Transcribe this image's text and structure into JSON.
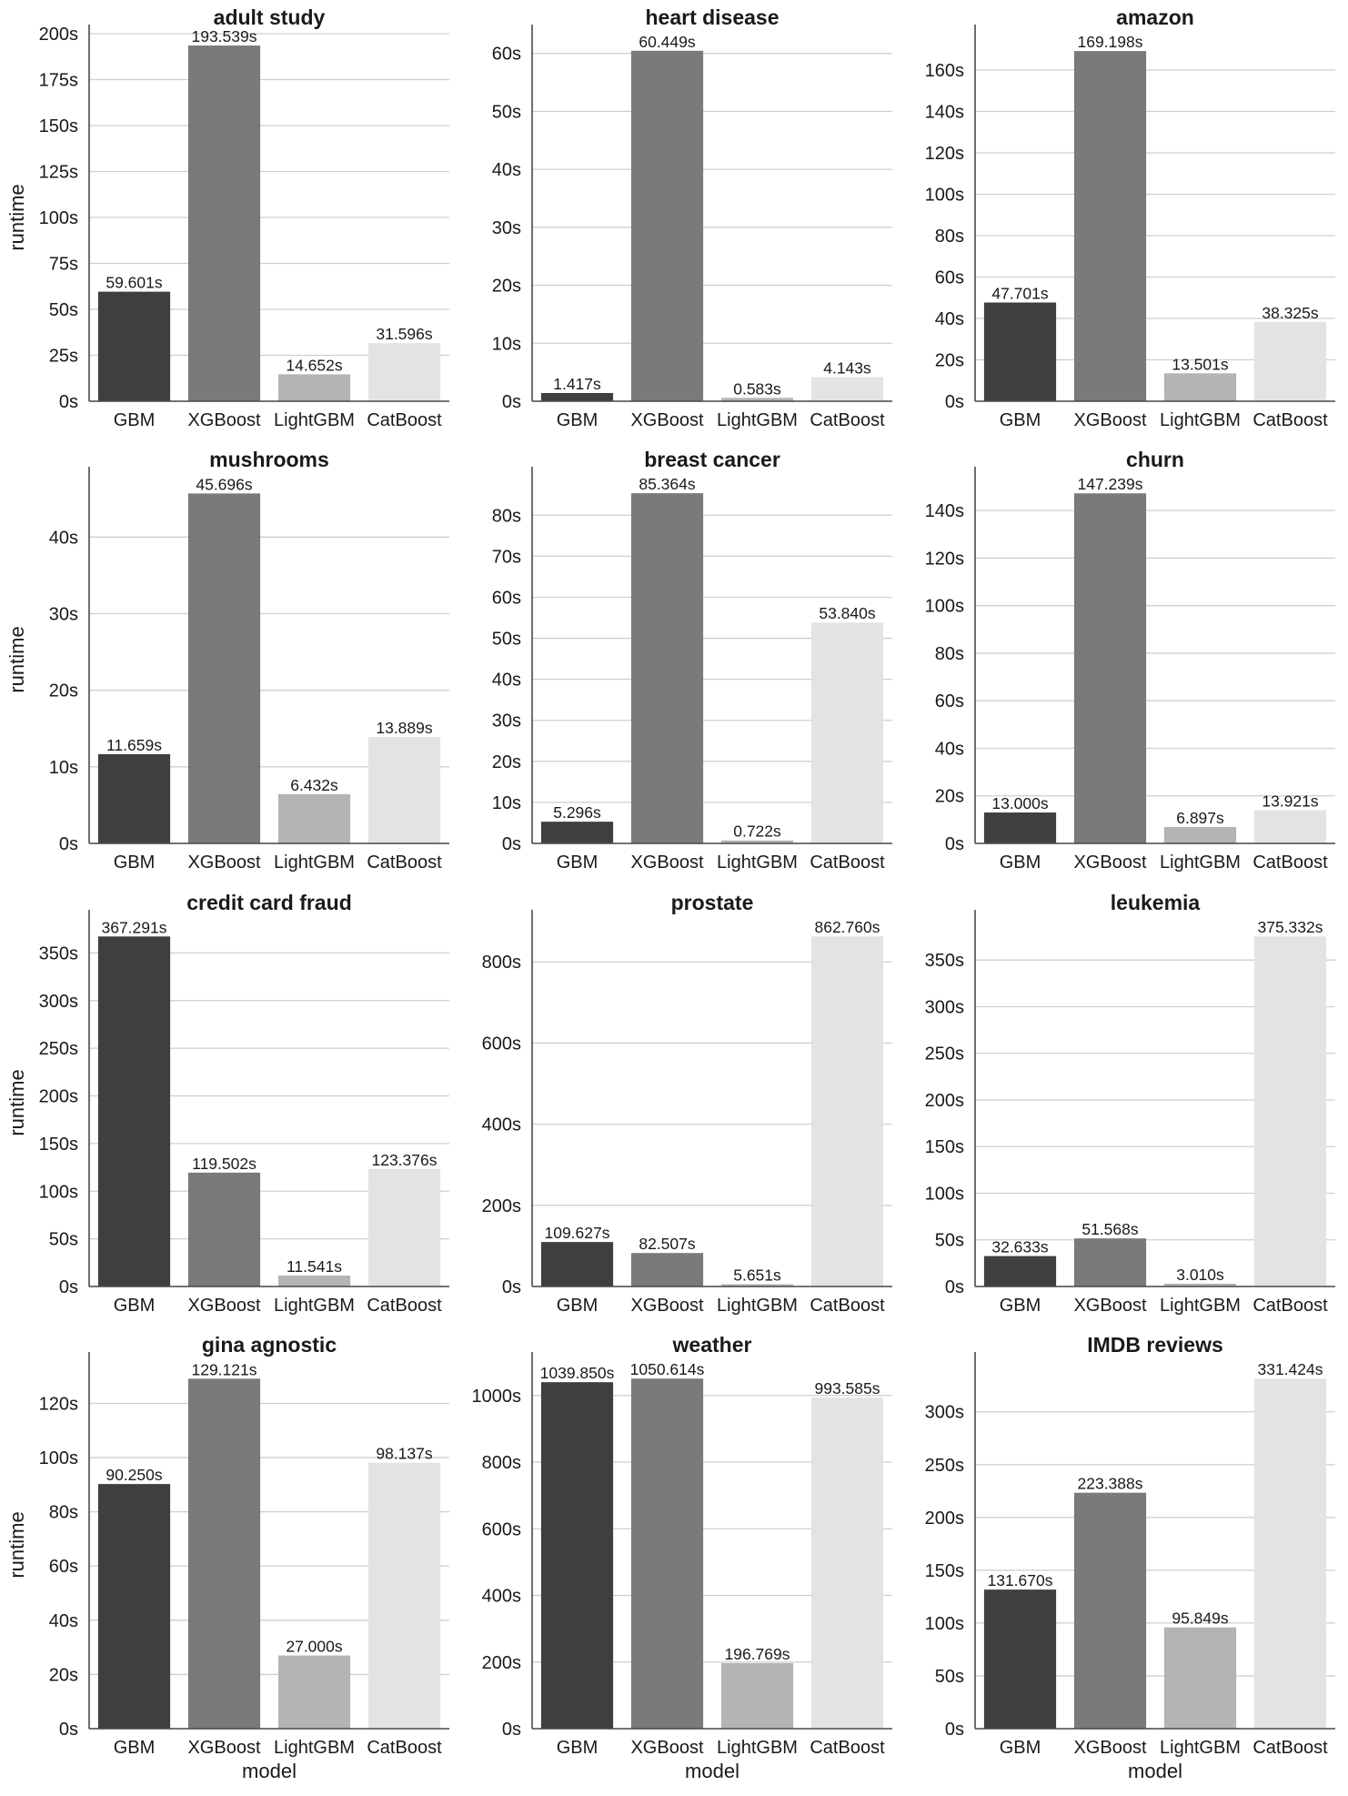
{
  "chart_data": [
    {
      "type": "bar",
      "title": "adult study",
      "categories": [
        "GBM",
        "XGBoost",
        "LightGBM",
        "CatBoost"
      ],
      "values": [
        59.601,
        193.539,
        14.652,
        31.596
      ],
      "labels": [
        "59.601s",
        "193.539s",
        "14.652s",
        "31.596s"
      ],
      "ylim": [
        0,
        200
      ],
      "yticks": [
        0,
        25,
        50,
        75,
        100,
        125,
        150,
        175,
        200
      ],
      "ytick_labels": [
        "0s",
        "25s",
        "50s",
        "75s",
        "100s",
        "125s",
        "150s",
        "175s",
        "200s"
      ],
      "ylabel": "runtime",
      "xlabel": ""
    },
    {
      "type": "bar",
      "title": "heart disease",
      "categories": [
        "GBM",
        "XGBoost",
        "LightGBM",
        "CatBoost"
      ],
      "values": [
        1.417,
        60.449,
        0.583,
        4.143
      ],
      "labels": [
        "1.417s",
        "60.449s",
        "0.583s",
        "4.143s"
      ],
      "ylim": [
        0,
        63.4
      ],
      "yticks": [
        0,
        10,
        20,
        30,
        40,
        50,
        60
      ],
      "ytick_labels": [
        "0s",
        "10s",
        "20s",
        "30s",
        "40s",
        "50s",
        "60s"
      ],
      "ylabel": "",
      "xlabel": ""
    },
    {
      "type": "bar",
      "title": "amazon",
      "categories": [
        "GBM",
        "XGBoost",
        "LightGBM",
        "CatBoost"
      ],
      "values": [
        47.701,
        169.198,
        13.501,
        38.325
      ],
      "labels": [
        "47.701s",
        "169.198s",
        "13.501s",
        "38.325s"
      ],
      "ylim": [
        0,
        177.6
      ],
      "yticks": [
        0,
        20,
        40,
        60,
        80,
        100,
        120,
        140,
        160
      ],
      "ytick_labels": [
        "0s",
        "20s",
        "40s",
        "60s",
        "80s",
        "100s",
        "120s",
        "140s",
        "160s"
      ],
      "ylabel": "",
      "xlabel": ""
    },
    {
      "type": "bar",
      "title": "mushrooms",
      "categories": [
        "GBM",
        "XGBoost",
        "LightGBM",
        "CatBoost"
      ],
      "values": [
        11.659,
        45.696,
        6.432,
        13.889
      ],
      "labels": [
        "11.659s",
        "45.696s",
        "6.432s",
        "13.889s"
      ],
      "ylim": [
        0,
        48
      ],
      "yticks": [
        0,
        10,
        20,
        30,
        40
      ],
      "ytick_labels": [
        "0s",
        "10s",
        "20s",
        "30s",
        "40s"
      ],
      "ylabel": "runtime",
      "xlabel": ""
    },
    {
      "type": "bar",
      "title": "breast cancer",
      "categories": [
        "GBM",
        "XGBoost",
        "LightGBM",
        "CatBoost"
      ],
      "values": [
        5.296,
        85.364,
        0.722,
        53.84
      ],
      "labels": [
        "5.296s",
        "85.364s",
        "0.722s",
        "53.840s"
      ],
      "ylim": [
        0,
        89.6
      ],
      "yticks": [
        0,
        10,
        20,
        30,
        40,
        50,
        60,
        70,
        80
      ],
      "ytick_labels": [
        "0s",
        "10s",
        "20s",
        "30s",
        "40s",
        "50s",
        "60s",
        "70s",
        "80s"
      ],
      "ylabel": "",
      "xlabel": ""
    },
    {
      "type": "bar",
      "title": "churn",
      "categories": [
        "GBM",
        "XGBoost",
        "LightGBM",
        "CatBoost"
      ],
      "values": [
        13.0,
        147.239,
        6.897,
        13.921
      ],
      "labels": [
        "13.000s",
        "147.239s",
        "6.897s",
        "13.921s"
      ],
      "ylim": [
        0,
        154.6
      ],
      "yticks": [
        0,
        20,
        40,
        60,
        80,
        100,
        120,
        140
      ],
      "ytick_labels": [
        "0s",
        "20s",
        "40s",
        "60s",
        "80s",
        "100s",
        "120s",
        "140s"
      ],
      "ylabel": "",
      "xlabel": ""
    },
    {
      "type": "bar",
      "title": "credit card fraud",
      "categories": [
        "GBM",
        "XGBoost",
        "LightGBM",
        "CatBoost"
      ],
      "values": [
        367.291,
        119.502,
        11.541,
        123.376
      ],
      "labels": [
        "367.291s",
        "119.502s",
        "11.541s",
        "123.376s"
      ],
      "ylim": [
        0,
        385.7
      ],
      "yticks": [
        0,
        50,
        100,
        150,
        200,
        250,
        300,
        350
      ],
      "ytick_labels": [
        "0s",
        "50s",
        "100s",
        "150s",
        "200s",
        "250s",
        "300s",
        "350s"
      ],
      "ylabel": "runtime",
      "xlabel": ""
    },
    {
      "type": "bar",
      "title": "prostate",
      "categories": [
        "GBM",
        "XGBoost",
        "LightGBM",
        "CatBoost"
      ],
      "values": [
        109.627,
        82.507,
        5.651,
        862.76
      ],
      "labels": [
        "109.627s",
        "82.507s",
        "5.651s",
        "862.760s"
      ],
      "ylim": [
        0,
        905.9
      ],
      "yticks": [
        0,
        200,
        400,
        600,
        800
      ],
      "ytick_labels": [
        "0s",
        "200s",
        "400s",
        "600s",
        "800s"
      ],
      "ylabel": "",
      "xlabel": ""
    },
    {
      "type": "bar",
      "title": "leukemia",
      "categories": [
        "GBM",
        "XGBoost",
        "LightGBM",
        "CatBoost"
      ],
      "values": [
        32.633,
        51.568,
        3.01,
        375.332
      ],
      "labels": [
        "32.633s",
        "51.568s",
        "3.010s",
        "375.332s"
      ],
      "ylim": [
        0,
        394.1
      ],
      "yticks": [
        0,
        50,
        100,
        150,
        200,
        250,
        300,
        350
      ],
      "ytick_labels": [
        "0s",
        "50s",
        "100s",
        "150s",
        "200s",
        "250s",
        "300s",
        "350s"
      ],
      "ylabel": "",
      "xlabel": ""
    },
    {
      "type": "bar",
      "title": "gina agnostic",
      "categories": [
        "GBM",
        "XGBoost",
        "LightGBM",
        "CatBoost"
      ],
      "values": [
        90.25,
        129.121,
        27.0,
        98.137
      ],
      "labels": [
        "90.250s",
        "129.121s",
        "27.000s",
        "98.137s"
      ],
      "ylim": [
        0,
        135.6
      ],
      "yticks": [
        0,
        20,
        40,
        60,
        80,
        100,
        120
      ],
      "ytick_labels": [
        "0s",
        "20s",
        "40s",
        "60s",
        "80s",
        "100s",
        "120s"
      ],
      "ylabel": "runtime",
      "xlabel": "model"
    },
    {
      "type": "bar",
      "title": "weather",
      "categories": [
        "GBM",
        "XGBoost",
        "LightGBM",
        "CatBoost"
      ],
      "values": [
        1039.85,
        1050.614,
        196.769,
        993.585
      ],
      "labels": [
        "1039.850s",
        "1050.614s",
        "196.769s",
        "993.585s"
      ],
      "ylim": [
        0,
        1103.1
      ],
      "yticks": [
        0,
        200,
        400,
        600,
        800,
        1000
      ],
      "ytick_labels": [
        "0s",
        "200s",
        "400s",
        "600s",
        "800s",
        "1000s"
      ],
      "ylabel": "",
      "xlabel": "model"
    },
    {
      "type": "bar",
      "title": "IMDB reviews",
      "categories": [
        "GBM",
        "XGBoost",
        "LightGBM",
        "CatBoost"
      ],
      "values": [
        131.67,
        223.388,
        95.849,
        331.424
      ],
      "labels": [
        "131.670s",
        "223.388s",
        "95.849s",
        "331.424s"
      ],
      "ylim": [
        0,
        348
      ],
      "yticks": [
        0,
        50,
        100,
        150,
        200,
        250,
        300
      ],
      "ytick_labels": [
        "0s",
        "50s",
        "100s",
        "150s",
        "200s",
        "250s",
        "300s"
      ],
      "ylabel": "",
      "xlabel": "model"
    }
  ],
  "colors": {
    "GBM": "#3f3f3f",
    "XGBoost": "#7a7a7a",
    "LightGBM": "#b4b4b4",
    "CatBoost": "#e3e3e3"
  }
}
